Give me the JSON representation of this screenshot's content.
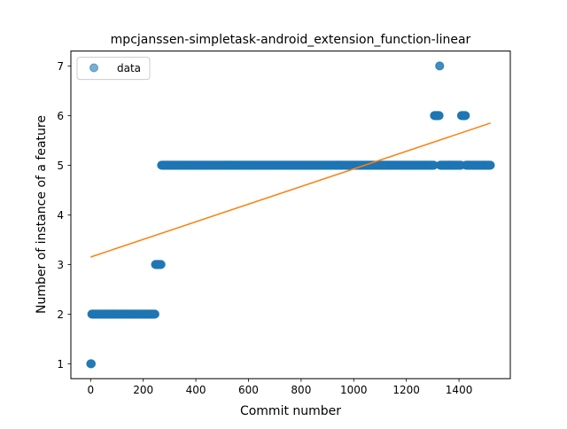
{
  "chart_data": {
    "type": "scatter",
    "title": "mpcjanssen-simpletask-android_extension_function-linear",
    "xlabel": "Commit number",
    "ylabel": "Number of instance of a feature",
    "xlim": [
      -75,
      1595
    ],
    "ylim": [
      0.7,
      7.3
    ],
    "xticks": [
      0,
      200,
      400,
      600,
      800,
      1000,
      1200,
      1400
    ],
    "yticks": [
      1,
      2,
      3,
      4,
      5,
      6,
      7
    ],
    "grid": false,
    "legend": {
      "position": "top-left",
      "entries": [
        "data"
      ]
    },
    "colors": {
      "data": "#1f77b4",
      "fit": "#ff7f0e"
    },
    "series": [
      {
        "name": "data",
        "kind": "points",
        "runs": [
          {
            "x_start": 0,
            "x_end": 3,
            "y": 1
          },
          {
            "x_start": 4,
            "x_end": 245,
            "y": 2
          },
          {
            "x_start": 246,
            "x_end": 268,
            "y": 3
          },
          {
            "x_start": 269,
            "x_end": 1305,
            "y": 5
          },
          {
            "x_start": 1306,
            "x_end": 1325,
            "y": 6
          },
          {
            "x_start": 1326,
            "x_end": 1327,
            "y": 7
          },
          {
            "x_start": 1328,
            "x_end": 1408,
            "y": 5
          },
          {
            "x_start": 1409,
            "x_end": 1425,
            "y": 6
          },
          {
            "x_start": 1426,
            "x_end": 1520,
            "y": 5
          }
        ]
      },
      {
        "kind": "fit-line",
        "x": [
          0,
          1520
        ],
        "y": [
          3.15,
          5.85
        ]
      }
    ]
  }
}
